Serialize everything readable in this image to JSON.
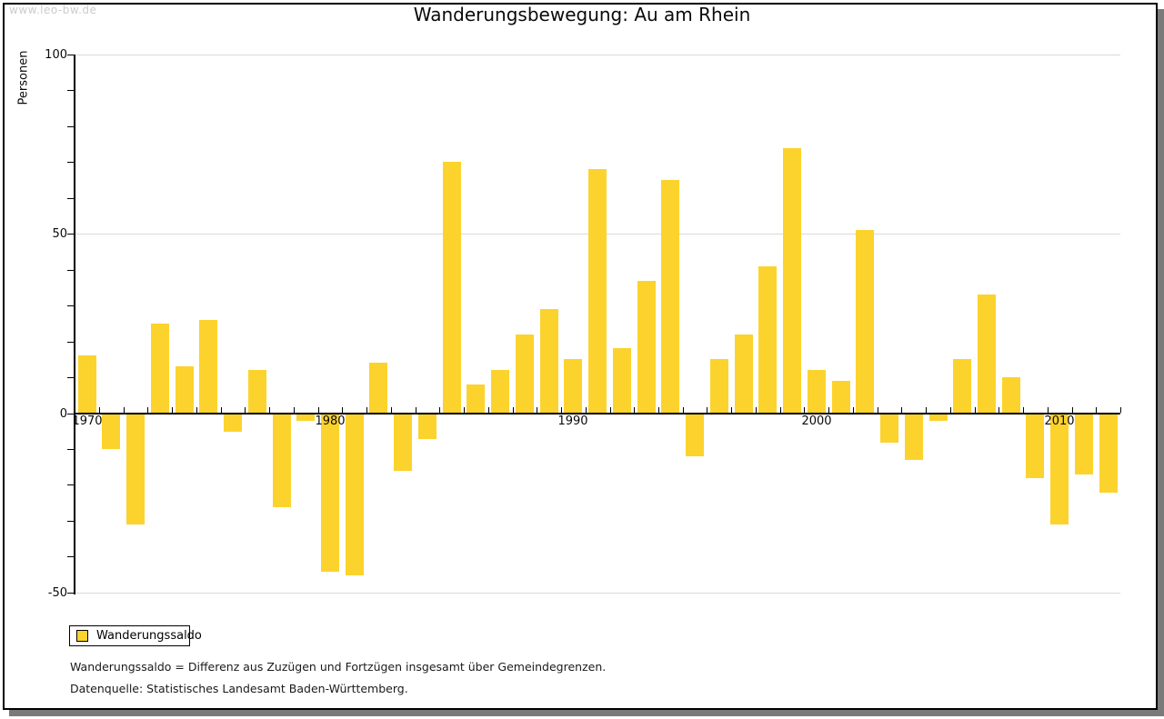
{
  "watermark": "www.leo-bw.de",
  "title": "Wanderungsbewegung: Au am Rhein",
  "legend": {
    "label": "Wanderungssaldo"
  },
  "footnotes": [
    "Wanderungssaldo = Differenz aus Zuzügen und Fortzügen insgesamt über Gemeindegrenzen.",
    "Datenquelle: Statistisches Landesamt Baden-Württemberg."
  ],
  "colors": {
    "bar": "#FCD32D",
    "grid": "#D9D9D9",
    "axis": "#000000",
    "watermark_text": "#CCCCCC",
    "frame_shadow": "#7A7A7A"
  },
  "chart_data": {
    "type": "bar",
    "title": "Wanderungsbewegung: Au am Rhein",
    "ylabel": "Personen",
    "xlabel": "",
    "x": [
      1970,
      1971,
      1972,
      1973,
      1974,
      1975,
      1976,
      1977,
      1978,
      1979,
      1980,
      1981,
      1982,
      1983,
      1984,
      1985,
      1986,
      1987,
      1988,
      1989,
      1990,
      1991,
      1992,
      1993,
      1994,
      1995,
      1996,
      1997,
      1998,
      1999,
      2000,
      2001,
      2002,
      2003,
      2004,
      2005,
      2006,
      2007,
      2008,
      2009,
      2010,
      2011,
      2012
    ],
    "series": [
      {
        "name": "Wanderungssaldo",
        "values": [
          16,
          -10,
          -31,
          25,
          13,
          26,
          -5,
          12,
          -26,
          -2,
          -44,
          -45,
          14,
          -16,
          -7,
          70,
          8,
          12,
          22,
          29,
          15,
          68,
          18,
          37,
          65,
          -12,
          15,
          22,
          41,
          74,
          12,
          9,
          51,
          -8,
          -13,
          -2,
          15,
          33,
          10,
          -18,
          -31,
          -17,
          -22
        ]
      }
    ],
    "x_tick_labels": [
      "1970",
      "1980",
      "1990",
      "2000",
      "2010"
    ],
    "y_ticks": [
      100,
      50,
      0,
      -50
    ],
    "y_minor_tick_step": 10,
    "ylim": [
      -50,
      100
    ],
    "grid": "horizontal",
    "legend_position": "bottom-left"
  }
}
